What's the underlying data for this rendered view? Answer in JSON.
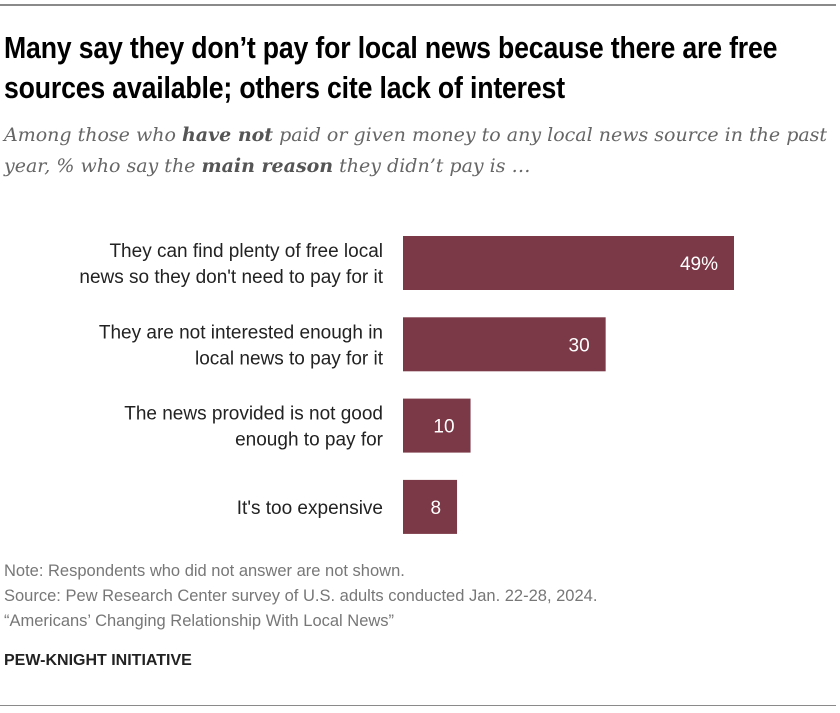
{
  "title": "Many say they don’t pay for local news because there are free sources available; others cite lack of interest",
  "subtitle": {
    "p1": "Among those who ",
    "b1": "have not",
    "p2": " paid or given money to any local news source in the past year, % who say the ",
    "b2": "main reason",
    "p3": " they didn’t pay is …"
  },
  "chart_data": {
    "type": "bar",
    "orientation": "horizontal",
    "categories": [
      [
        "They can find plenty of free local",
        "news so they don't need to pay for it"
      ],
      [
        "They are not interested enough in",
        "local news to pay for it"
      ],
      [
        "The news provided is not good",
        "enough to pay for"
      ],
      [
        "It's too expensive"
      ]
    ],
    "values": [
      49,
      30,
      10,
      8
    ],
    "data_labels": [
      "49%",
      "30",
      "10",
      "8"
    ],
    "unit": "%",
    "xlim": [
      0,
      100
    ],
    "bar_color": "#7b3947",
    "grid": false
  },
  "footer": {
    "note": "Note: Respondents who did not answer are not shown.",
    "source": "Source: Pew Research Center survey of U.S. adults conducted Jan. 22-28, 2024.",
    "report": "“Americans’ Changing Relationship With Local News”",
    "brand": "PEW-KNIGHT INITIATIVE"
  }
}
